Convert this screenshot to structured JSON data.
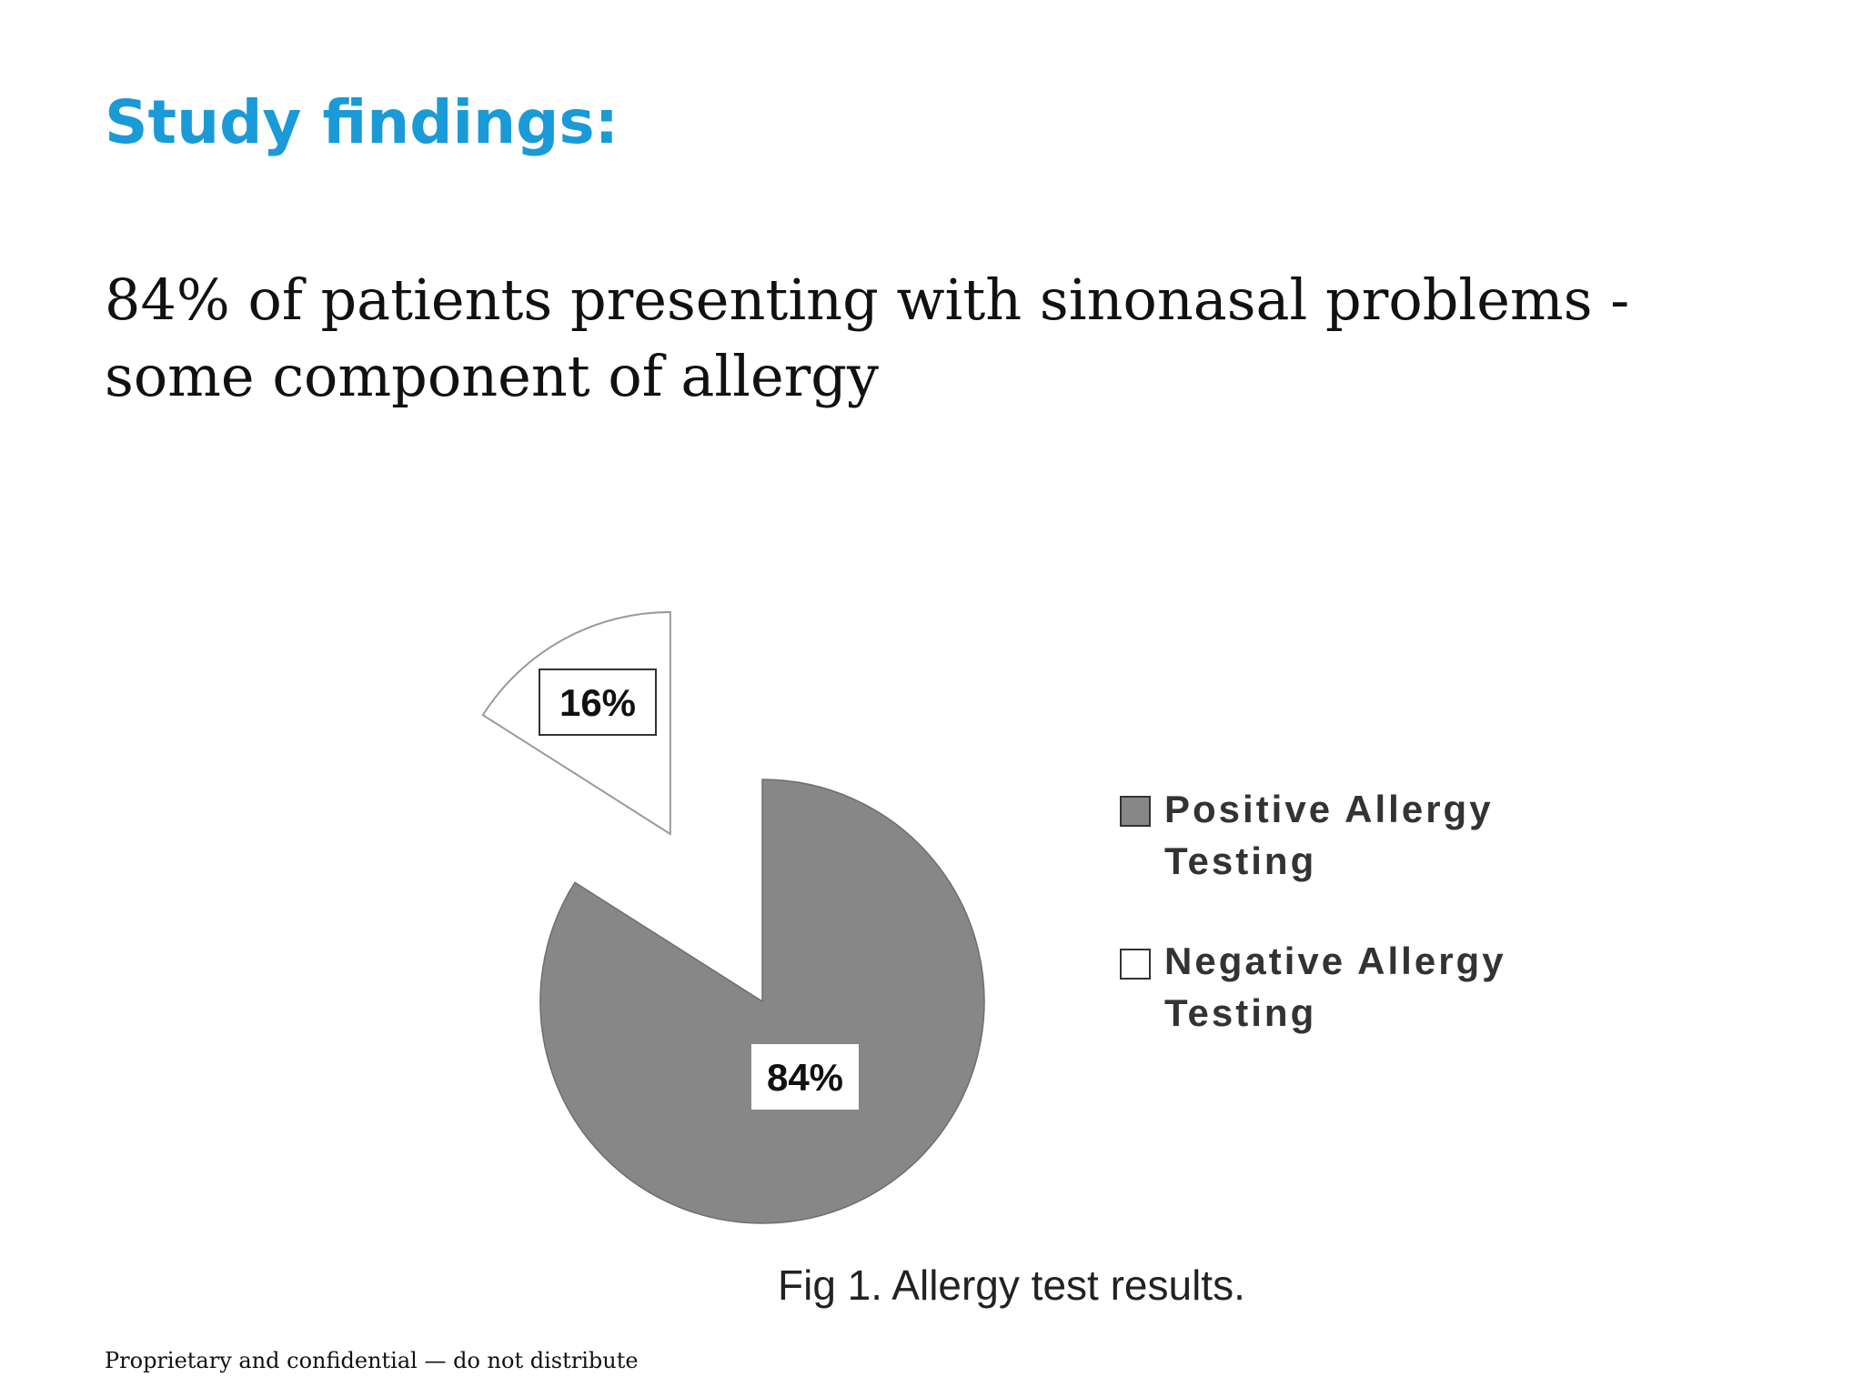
{
  "slide": {
    "title": "Study findings:",
    "body": "84% of patients presenting with sinonasal problems - some component of allergy",
    "footer": "Proprietary and confidential — do not distribute"
  },
  "chart_data": {
    "type": "pie",
    "caption": "Fig 1. Allergy test results.",
    "slices": [
      {
        "name": "Positive Allergy Testing",
        "legend_lines": [
          "Positive Allergy",
          "Testing"
        ],
        "value": 84,
        "label": "84%",
        "color": "#878787",
        "exploded": false
      },
      {
        "name": "Negative Allergy Testing",
        "legend_lines": [
          "Negative Allergy",
          "Testing"
        ],
        "value": 16,
        "label": "16%",
        "color": "#ffffff",
        "exploded": true
      }
    ],
    "legend_position": "right"
  }
}
